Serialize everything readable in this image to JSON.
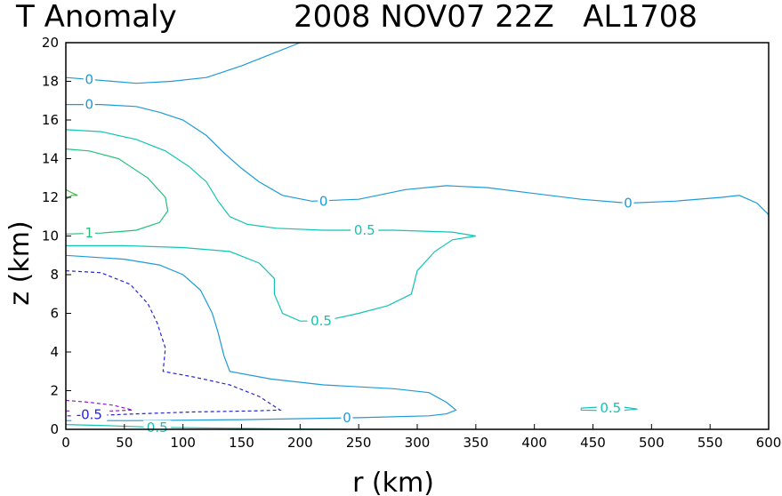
{
  "chart_data": {
    "type": "contour",
    "title_left": "T Anomaly",
    "title_right": "2008 NOV07 22Z   AL1708",
    "xlabel": "r (km)",
    "ylabel": "z (km)",
    "xlim": [
      0,
      600
    ],
    "ylim": [
      0,
      20
    ],
    "xticks": [
      0,
      50,
      100,
      150,
      200,
      250,
      300,
      350,
      400,
      450,
      500,
      550,
      600
    ],
    "yticks": [
      0,
      2,
      4,
      6,
      8,
      10,
      12,
      14,
      16,
      18,
      20
    ],
    "grid": false,
    "colors": {
      "zero": "#1e9bd7",
      "pos_half": "#12c4b4",
      "pos_one": "#22c07a",
      "pos_high": "#3cc03c",
      "neg_half": "#2626d2",
      "neg_one": "#8a1ec8"
    },
    "contours": [
      {
        "level": 0,
        "color_key": "zero",
        "dashed": false,
        "points": [
          [
            0,
            18.2
          ],
          [
            20,
            18.1
          ],
          [
            40,
            18.0
          ],
          [
            60,
            17.9
          ],
          [
            90,
            18.0
          ],
          [
            120,
            18.2
          ],
          [
            150,
            18.8
          ],
          [
            175,
            19.4
          ],
          [
            200,
            20.0
          ]
        ]
      },
      {
        "level": 0,
        "color_key": "zero",
        "dashed": false,
        "points": [
          [
            0,
            16.8
          ],
          [
            30,
            16.8
          ],
          [
            60,
            16.7
          ],
          [
            80,
            16.4
          ],
          [
            100,
            16.0
          ],
          [
            120,
            15.2
          ],
          [
            135,
            14.3
          ],
          [
            150,
            13.5
          ],
          [
            165,
            12.8
          ],
          [
            185,
            12.1
          ],
          [
            210,
            11.8
          ],
          [
            250,
            11.9
          ],
          [
            290,
            12.4
          ],
          [
            325,
            12.6
          ],
          [
            360,
            12.5
          ],
          [
            400,
            12.2
          ],
          [
            440,
            11.9
          ],
          [
            480,
            11.7
          ],
          [
            520,
            11.8
          ],
          [
            560,
            12.0
          ],
          [
            575,
            12.1
          ],
          [
            590,
            11.7
          ],
          [
            600,
            11.1
          ]
        ]
      },
      {
        "level": 0,
        "color_key": "zero",
        "dashed": false,
        "points": [
          [
            0,
            9.0
          ],
          [
            50,
            8.8
          ],
          [
            80,
            8.5
          ],
          [
            100,
            8.0
          ],
          [
            115,
            7.2
          ],
          [
            125,
            6.0
          ],
          [
            130,
            5.0
          ],
          [
            135,
            3.8
          ],
          [
            140,
            3.0
          ],
          [
            175,
            2.6
          ],
          [
            220,
            2.3
          ],
          [
            280,
            2.1
          ],
          [
            310,
            1.9
          ],
          [
            325,
            1.4
          ],
          [
            333,
            1.0
          ],
          [
            325,
            0.8
          ],
          [
            310,
            0.7
          ],
          [
            250,
            0.6
          ],
          [
            150,
            0.5
          ],
          [
            60,
            0.45
          ],
          [
            0,
            0.45
          ]
        ]
      },
      {
        "level": 0.5,
        "color_key": "pos_half",
        "dashed": false,
        "points": [
          [
            0,
            15.5
          ],
          [
            30,
            15.4
          ],
          [
            60,
            15.0
          ],
          [
            85,
            14.4
          ],
          [
            105,
            13.6
          ],
          [
            120,
            12.8
          ],
          [
            130,
            11.8
          ],
          [
            140,
            11.0
          ],
          [
            155,
            10.6
          ],
          [
            180,
            10.4
          ],
          [
            220,
            10.3
          ],
          [
            280,
            10.3
          ],
          [
            330,
            10.2
          ],
          [
            350,
            10.0
          ],
          [
            330,
            9.8
          ],
          [
            315,
            9.2
          ],
          [
            300,
            8.2
          ],
          [
            295,
            7.0
          ],
          [
            275,
            6.4
          ],
          [
            250,
            6.0
          ],
          [
            220,
            5.6
          ],
          [
            200,
            5.6
          ],
          [
            185,
            6.0
          ],
          [
            178,
            7.0
          ],
          [
            178,
            7.8
          ],
          [
            165,
            8.6
          ],
          [
            140,
            9.2
          ],
          [
            100,
            9.4
          ],
          [
            50,
            9.5
          ],
          [
            0,
            9.5
          ]
        ]
      },
      {
        "level": 1,
        "color_key": "pos_one",
        "dashed": false,
        "points": [
          [
            0,
            14.5
          ],
          [
            20,
            14.4
          ],
          [
            45,
            14.0
          ],
          [
            70,
            13.0
          ],
          [
            85,
            12.0
          ],
          [
            87,
            11.3
          ],
          [
            80,
            10.7
          ],
          [
            60,
            10.3
          ],
          [
            30,
            10.15
          ],
          [
            0,
            10.1
          ]
        ]
      },
      {
        "level": 1.5,
        "color_key": "pos_high",
        "dashed": false,
        "points": [
          [
            0,
            11.9
          ],
          [
            5,
            12.1
          ],
          [
            10,
            12.1
          ],
          [
            3,
            12.3
          ],
          [
            0,
            12.4
          ]
        ]
      },
      {
        "level": 0.5,
        "color_key": "pos_half",
        "dashed": false,
        "points": [
          [
            0,
            0.25
          ],
          [
            30,
            0.2
          ],
          [
            80,
            0.1
          ],
          [
            150,
            0.05
          ],
          [
            200,
            0.02
          ],
          [
            240,
            0.0
          ]
        ]
      },
      {
        "level": 0.5,
        "color_key": "pos_half",
        "dashed": false,
        "points": [
          [
            440,
            1.1
          ],
          [
            470,
            1.2
          ],
          [
            488,
            1.05
          ],
          [
            470,
            0.95
          ],
          [
            440,
            1.0
          ],
          [
            440,
            1.1
          ]
        ]
      },
      {
        "level": -0.5,
        "color_key": "neg_half",
        "dashed": true,
        "points": [
          [
            0,
            8.2
          ],
          [
            30,
            8.1
          ],
          [
            55,
            7.5
          ],
          [
            70,
            6.5
          ],
          [
            78,
            5.5
          ],
          [
            85,
            4.2
          ],
          [
            83,
            3.0
          ],
          [
            110,
            2.7
          ],
          [
            140,
            2.3
          ],
          [
            165,
            1.7
          ],
          [
            183,
            1.0
          ],
          [
            160,
            0.95
          ],
          [
            110,
            0.9
          ],
          [
            60,
            0.8
          ],
          [
            20,
            0.7
          ],
          [
            0,
            0.7
          ]
        ]
      },
      {
        "level": -1,
        "color_key": "neg_one",
        "dashed": true,
        "points": [
          [
            0,
            1.5
          ],
          [
            20,
            1.4
          ],
          [
            40,
            1.25
          ],
          [
            57,
            1.0
          ],
          [
            40,
            0.95
          ],
          [
            20,
            0.95
          ],
          [
            0,
            0.95
          ]
        ]
      }
    ],
    "labels": [
      {
        "text": "0",
        "x": 20,
        "y": 18.1,
        "color_key": "zero"
      },
      {
        "text": "0",
        "x": 20,
        "y": 16.8,
        "color_key": "zero"
      },
      {
        "text": "0",
        "x": 220,
        "y": 11.8,
        "color_key": "zero"
      },
      {
        "text": "0",
        "x": 480,
        "y": 11.7,
        "color_key": "zero"
      },
      {
        "text": "0",
        "x": 240,
        "y": 0.6,
        "color_key": "zero"
      },
      {
        "text": "0.5",
        "x": 255,
        "y": 10.3,
        "color_key": "pos_half"
      },
      {
        "text": "0.5",
        "x": 218,
        "y": 5.6,
        "color_key": "pos_half"
      },
      {
        "text": "0.5",
        "x": 465,
        "y": 1.1,
        "color_key": "pos_half"
      },
      {
        "text": "0.5",
        "x": 78,
        "y": 0.1,
        "color_key": "pos_half"
      },
      {
        "text": "1",
        "x": 20,
        "y": 10.15,
        "color_key": "pos_one"
      },
      {
        "text": "-0.5",
        "x": 20,
        "y": 0.75,
        "color_key": "neg_half"
      }
    ]
  }
}
